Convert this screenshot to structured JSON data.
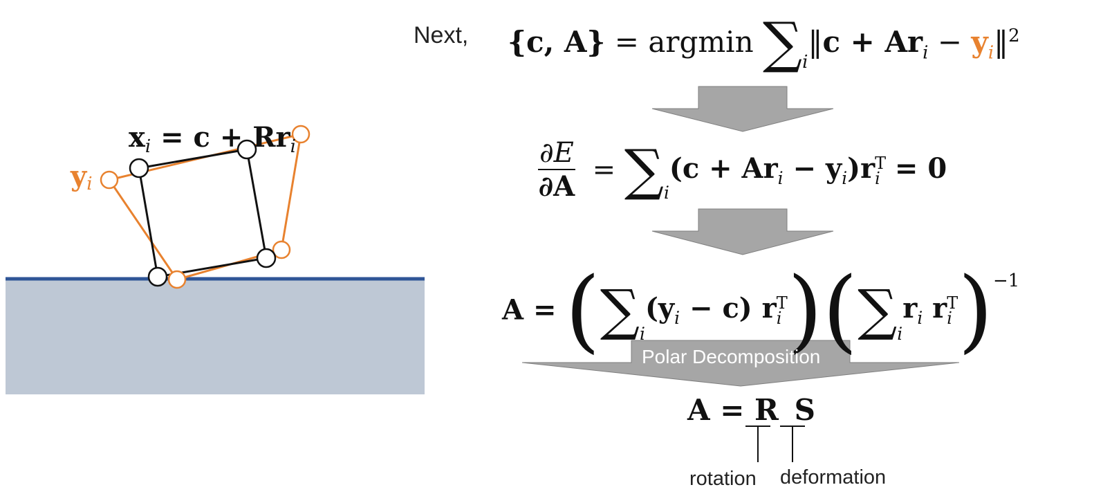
{
  "intro_word": "Next,",
  "colors": {
    "orange": "#E8822F",
    "ground_fill": "#BEC8D5",
    "ground_line": "#2F5597",
    "arrow_fill": "#A6A6A6",
    "arrow_stroke": "#7F7F7F"
  },
  "equations": {
    "eq1": {
      "lhs": "{c, A}",
      "op": "argmin",
      "term": "c + Ar",
      "minus": "y",
      "sub": "i",
      "power": "2"
    },
    "eq2": {
      "num": "∂E",
      "den": "∂A",
      "body": "(c + Ar",
      "mid": " − y",
      "tail": ")r",
      "sup": "T",
      "rhs": "= 0",
      "sub": "i"
    },
    "eq3": {
      "lhs": "A =",
      "part1": "(y",
      "part1b": " − c)  r",
      "part2": "r",
      "part2b": "  r",
      "sup": "T",
      "power": "−1",
      "sub": "i"
    },
    "eq4": {
      "lhs": "A =",
      "r": "R",
      "s": "S"
    }
  },
  "arrow_label": "Polar Decomposition",
  "labels": {
    "rotation": "rotation",
    "deformation": "deformation"
  },
  "diagram": {
    "x_eq": "x",
    "x_eq_rest": " = c + Rr",
    "y_label": "y",
    "sub": "i"
  }
}
